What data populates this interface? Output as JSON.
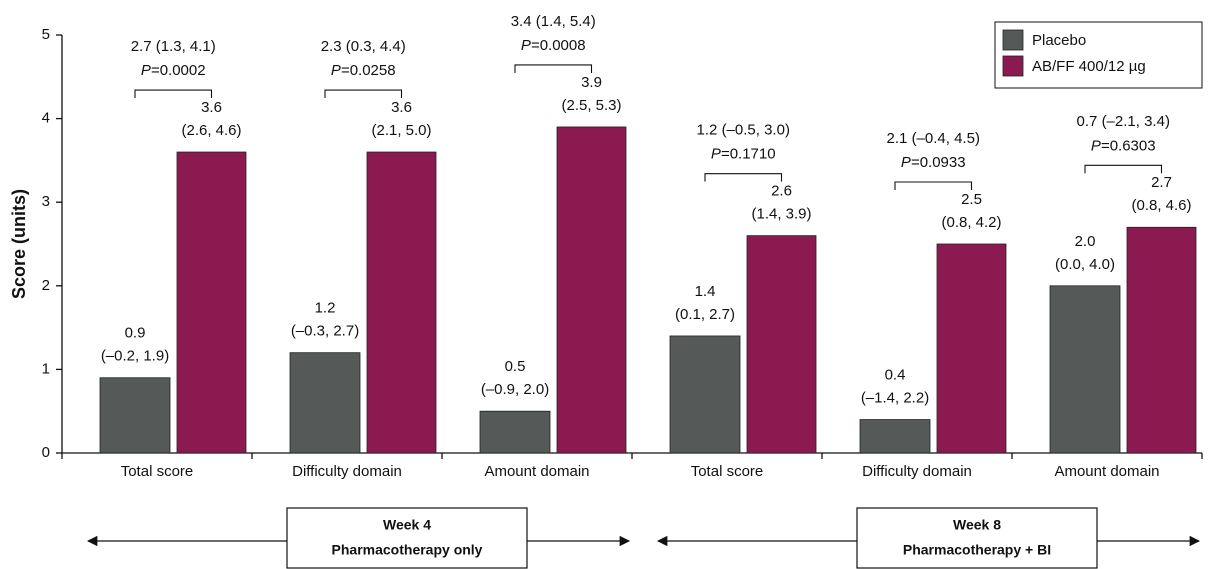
{
  "chart_data": {
    "type": "bar",
    "y_label": "Score (units)",
    "categories": [
      "Total score",
      "Difficulty domain",
      "Amount domain",
      "Total score",
      "Difficulty domain",
      "Amount domain"
    ],
    "series": [
      {
        "name": "Placebo",
        "color": "#555a58",
        "values": [
          0.9,
          1.2,
          0.5,
          1.4,
          0.4,
          2.0
        ],
        "value_labels": [
          "0.9",
          "1.2",
          "0.5",
          "1.4",
          "0.4",
          "2.0"
        ],
        "ci_labels": [
          "(–0.2, 1.9)",
          "(–0.3, 2.7)",
          "(–0.9, 2.0)",
          "(0.1, 2.7)",
          "(–1.4, 2.2)",
          "(0.0, 4.0)"
        ]
      },
      {
        "name": "AB/FF 400/12 µg",
        "color": "#8a1a50",
        "values": [
          3.6,
          3.6,
          3.9,
          2.6,
          2.5,
          2.7
        ],
        "value_labels": [
          "3.6",
          "3.6",
          "3.9",
          "2.6",
          "2.5",
          "2.7"
        ],
        "ci_labels": [
          "(2.6, 4.6)",
          "(2.1, 5.0)",
          "(2.5, 5.3)",
          "(1.4, 3.9)",
          "(0.8, 4.2)",
          "(0.8, 4.6)"
        ]
      }
    ],
    "comparisons": [
      {
        "difference": "2.7 (1.3, 4.1)",
        "p_symbol": "P",
        "p_value": "=0.0002"
      },
      {
        "difference": "2.3 (0.3, 4.4)",
        "p_symbol": "P",
        "p_value": "=0.0258"
      },
      {
        "difference": "3.4 (1.4, 5.4)",
        "p_symbol": "P",
        "p_value": "=0.0008"
      },
      {
        "difference": "1.2 (–0.5, 3.0)",
        "p_symbol": "P",
        "p_value": "=0.1710"
      },
      {
        "difference": "2.1 (–0.4, 4.5)",
        "p_symbol": "P",
        "p_value": "=0.0933"
      },
      {
        "difference": "0.7 (–2.1, 3.4)",
        "p_symbol": "P",
        "p_value": "=0.6303"
      }
    ],
    "groups": [
      {
        "title": "Week 4",
        "subtitle": "Pharmacotherapy only"
      },
      {
        "title": "Week 8",
        "subtitle": "Pharmacotherapy + BI"
      }
    ],
    "ylim": [
      0,
      5
    ],
    "yticks": [
      0,
      1,
      2,
      3,
      4,
      5
    ],
    "grid": false,
    "legend": "top-right"
  }
}
